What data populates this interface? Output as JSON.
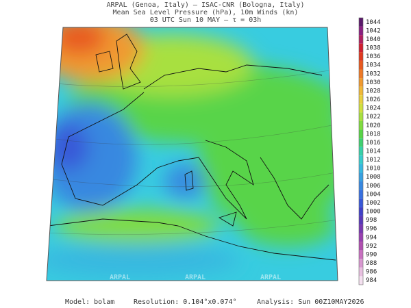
{
  "header": {
    "line1": "ARPAL (Genoa, Italy)  –  ISAC-CNR (Bologna, Italy)",
    "line2": "Mean Sea Level Pressure (hPa), 10m Winds (kn)",
    "line3": "03 UTC Sun 10 MAY  –  τ = 03h"
  },
  "map": {
    "watermark": "ARPAL"
  },
  "colorbar": {
    "levels": [
      1044,
      1042,
      1040,
      1038,
      1036,
      1034,
      1032,
      1030,
      1028,
      1026,
      1024,
      1022,
      1020,
      1018,
      1016,
      1014,
      1012,
      1010,
      1008,
      1006,
      1004,
      1002,
      1000,
      998,
      996,
      994,
      992,
      990,
      988,
      986,
      984
    ],
    "colors": [
      "#5a1a6a",
      "#8a2080",
      "#b02060",
      "#d02030",
      "#e03a20",
      "#e85a20",
      "#ee7a28",
      "#f09a30",
      "#f0b838",
      "#e8d040",
      "#d0e040",
      "#a8e040",
      "#80dc40",
      "#58d448",
      "#40d070",
      "#38d0a8",
      "#38cccc",
      "#38b8e0",
      "#38a0e0",
      "#3888e0",
      "#3870e0",
      "#3858d8",
      "#4040c8",
      "#5838b8",
      "#7838b0",
      "#9840b0",
      "#b050b0",
      "#c870c0",
      "#d898d0",
      "#e8c0e0",
      "#f4e0f0"
    ]
  },
  "footer": {
    "model": "Model: bolam",
    "resolution": "Resolution: 0.104°x0.074°",
    "analysis": "Analysis: Sun 00Z10MAY2026"
  }
}
